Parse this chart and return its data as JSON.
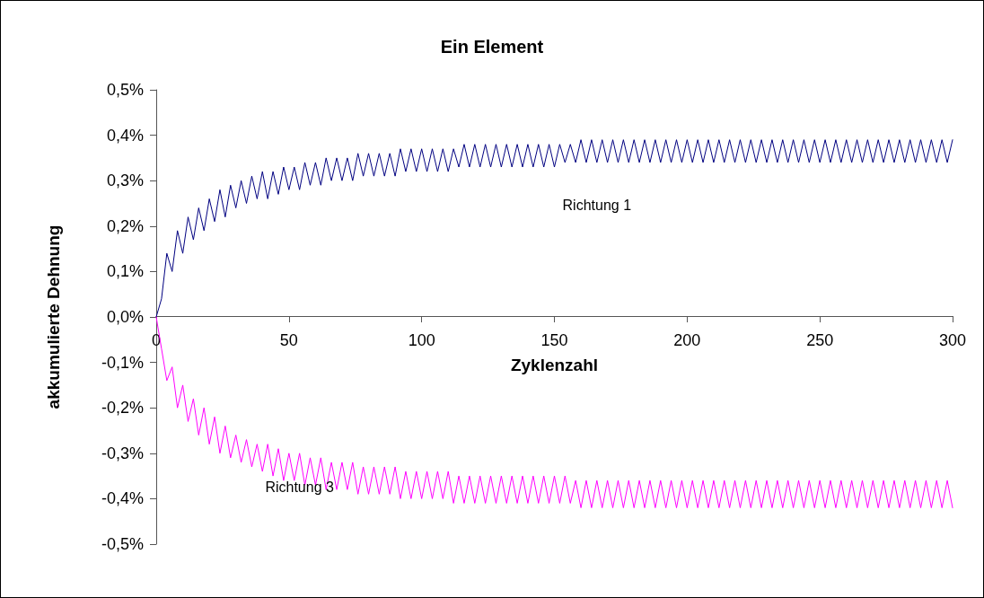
{
  "chart_data": {
    "type": "line",
    "title": "Ein Element",
    "xlabel": "Zyklenzahl",
    "ylabel": "akkumulierte Dehnung",
    "x": [
      0,
      2,
      4,
      6,
      8,
      10,
      12,
      14,
      16,
      18,
      20,
      22,
      24,
      26,
      28,
      30,
      32,
      34,
      36,
      38,
      40,
      42,
      44,
      46,
      48,
      50,
      52,
      54,
      56,
      58,
      60,
      62,
      64,
      66,
      68,
      70,
      72,
      74,
      76,
      78,
      80,
      82,
      84,
      86,
      88,
      90,
      92,
      94,
      96,
      98,
      100,
      102,
      104,
      106,
      108,
      110,
      112,
      114,
      116,
      118,
      120,
      122,
      124,
      126,
      128,
      130,
      132,
      134,
      136,
      138,
      140,
      142,
      144,
      146,
      148,
      150,
      152,
      154,
      156,
      158,
      160,
      162,
      164,
      166,
      168,
      170,
      172,
      174,
      176,
      178,
      180,
      182,
      184,
      186,
      188,
      190,
      192,
      194,
      196,
      198,
      200,
      202,
      204,
      206,
      208,
      210,
      212,
      214,
      216,
      218,
      220,
      222,
      224,
      226,
      228,
      230,
      232,
      234,
      236,
      238,
      240,
      242,
      244,
      246,
      248,
      250,
      252,
      254,
      256,
      258,
      260,
      262,
      264,
      266,
      268,
      270,
      272,
      274,
      276,
      278,
      280,
      282,
      284,
      286,
      288,
      290,
      292,
      294,
      296,
      298,
      300
    ],
    "series": [
      {
        "name": "Richtung 1",
        "color": "#000080",
        "values": [
          0,
          0.04,
          0.14,
          0.1,
          0.19,
          0.14,
          0.22,
          0.17,
          0.24,
          0.19,
          0.26,
          0.21,
          0.28,
          0.22,
          0.29,
          0.24,
          0.3,
          0.25,
          0.31,
          0.26,
          0.32,
          0.26,
          0.32,
          0.27,
          0.33,
          0.28,
          0.33,
          0.28,
          0.34,
          0.29,
          0.34,
          0.29,
          0.35,
          0.3,
          0.35,
          0.3,
          0.35,
          0.3,
          0.36,
          0.31,
          0.36,
          0.31,
          0.36,
          0.31,
          0.36,
          0.31,
          0.37,
          0.32,
          0.37,
          0.32,
          0.37,
          0.32,
          0.37,
          0.32,
          0.37,
          0.32,
          0.37,
          0.33,
          0.38,
          0.33,
          0.38,
          0.33,
          0.38,
          0.33,
          0.38,
          0.33,
          0.38,
          0.33,
          0.38,
          0.33,
          0.38,
          0.33,
          0.38,
          0.33,
          0.38,
          0.33,
          0.38,
          0.34,
          0.38,
          0.34,
          0.39,
          0.34,
          0.39,
          0.34,
          0.39,
          0.34,
          0.39,
          0.34,
          0.39,
          0.34,
          0.39,
          0.34,
          0.39,
          0.34,
          0.39,
          0.34,
          0.39,
          0.34,
          0.39,
          0.34,
          0.39,
          0.34,
          0.39,
          0.34,
          0.39,
          0.34,
          0.39,
          0.34,
          0.39,
          0.34,
          0.39,
          0.34,
          0.39,
          0.34,
          0.39,
          0.34,
          0.39,
          0.34,
          0.39,
          0.34,
          0.39,
          0.34,
          0.39,
          0.34,
          0.39,
          0.34,
          0.39,
          0.34,
          0.39,
          0.34,
          0.39,
          0.34,
          0.39,
          0.34,
          0.39,
          0.34,
          0.39,
          0.34,
          0.39,
          0.34,
          0.39,
          0.34,
          0.39,
          0.34,
          0.39,
          0.34,
          0.39,
          0.34,
          0.39,
          0.34,
          0.39
        ]
      },
      {
        "name": "Richtung 3",
        "color": "#ff00ff",
        "values": [
          0,
          -0.07,
          -0.14,
          -0.11,
          -0.2,
          -0.15,
          -0.23,
          -0.18,
          -0.26,
          -0.2,
          -0.28,
          -0.22,
          -0.3,
          -0.24,
          -0.31,
          -0.26,
          -0.32,
          -0.27,
          -0.33,
          -0.28,
          -0.34,
          -0.28,
          -0.35,
          -0.29,
          -0.36,
          -0.3,
          -0.36,
          -0.3,
          -0.37,
          -0.31,
          -0.37,
          -0.31,
          -0.38,
          -0.32,
          -0.38,
          -0.32,
          -0.38,
          -0.32,
          -0.39,
          -0.33,
          -0.39,
          -0.33,
          -0.39,
          -0.33,
          -0.39,
          -0.33,
          -0.4,
          -0.34,
          -0.4,
          -0.34,
          -0.4,
          -0.34,
          -0.4,
          -0.34,
          -0.4,
          -0.34,
          -0.41,
          -0.35,
          -0.41,
          -0.35,
          -0.41,
          -0.35,
          -0.41,
          -0.35,
          -0.41,
          -0.35,
          -0.41,
          -0.35,
          -0.41,
          -0.35,
          -0.41,
          -0.35,
          -0.41,
          -0.35,
          -0.41,
          -0.35,
          -0.41,
          -0.35,
          -0.41,
          -0.36,
          -0.42,
          -0.36,
          -0.42,
          -0.36,
          -0.42,
          -0.36,
          -0.42,
          -0.36,
          -0.42,
          -0.36,
          -0.42,
          -0.36,
          -0.42,
          -0.36,
          -0.42,
          -0.36,
          -0.42,
          -0.36,
          -0.42,
          -0.36,
          -0.42,
          -0.36,
          -0.42,
          -0.36,
          -0.42,
          -0.36,
          -0.42,
          -0.36,
          -0.42,
          -0.36,
          -0.42,
          -0.36,
          -0.42,
          -0.36,
          -0.42,
          -0.36,
          -0.42,
          -0.36,
          -0.42,
          -0.36,
          -0.42,
          -0.36,
          -0.42,
          -0.36,
          -0.42,
          -0.36,
          -0.42,
          -0.36,
          -0.42,
          -0.36,
          -0.42,
          -0.36,
          -0.42,
          -0.36,
          -0.42,
          -0.36,
          -0.42,
          -0.36,
          -0.42,
          -0.36,
          -0.42,
          -0.36,
          -0.42,
          -0.36,
          -0.42,
          -0.36,
          -0.42,
          -0.36,
          -0.42,
          -0.36,
          -0.42
        ]
      }
    ],
    "xlim": [
      0,
      300
    ],
    "xticks": [
      0,
      50,
      100,
      150,
      200,
      250,
      300
    ],
    "ylim": [
      -0.5,
      0.5
    ],
    "yticks": [
      {
        "value": -0.5,
        "label": "-0,5%"
      },
      {
        "value": -0.4,
        "label": "-0,4%"
      },
      {
        "value": -0.3,
        "label": "-0,3%"
      },
      {
        "value": -0.2,
        "label": "-0,2%"
      },
      {
        "value": -0.1,
        "label": "-0,1%"
      },
      {
        "value": 0,
        "label": "0,0%"
      },
      {
        "value": 0.1,
        "label": "0,1%"
      },
      {
        "value": 0.2,
        "label": "0,2%"
      },
      {
        "value": 0.3,
        "label": "0,3%"
      },
      {
        "value": 0.4,
        "label": "0,4%"
      },
      {
        "value": 0.5,
        "label": "0,5%"
      }
    ],
    "grid": false,
    "legend": false,
    "marker": "none",
    "line_style": "solid"
  }
}
